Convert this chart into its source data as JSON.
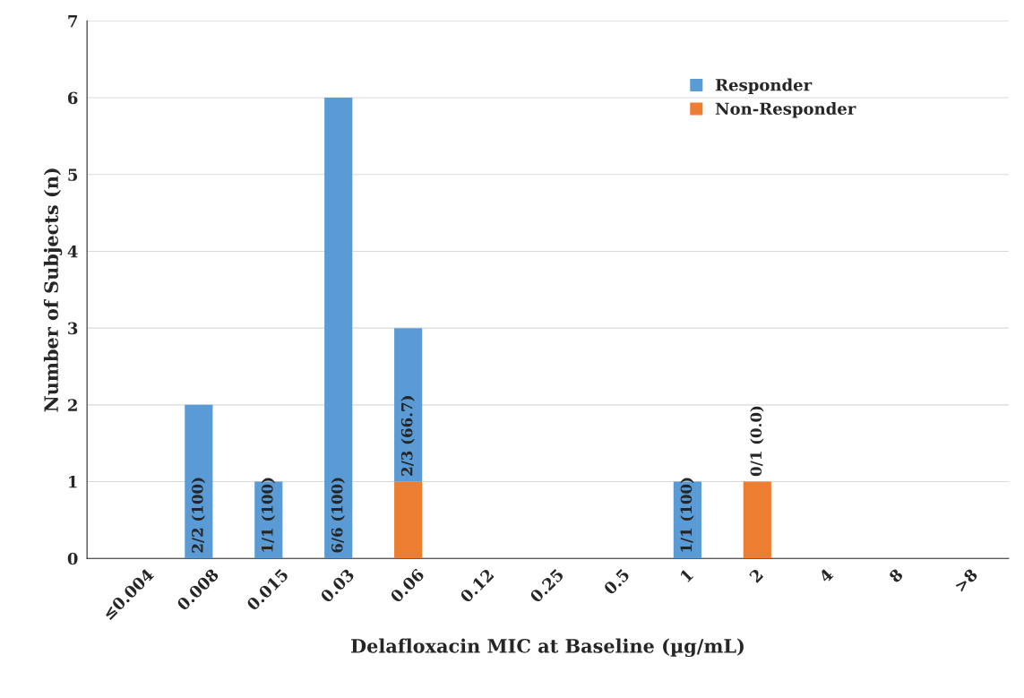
{
  "chart_data": {
    "type": "bar",
    "stacked": true,
    "xlabel": "Delafloxacin MIC at Baseline (µg/mL)",
    "ylabel": "Number of Subjects (n)",
    "categories": [
      "≤0.004",
      "0.008",
      "0.015",
      "0.03",
      "0.06",
      "0.12",
      "0.25",
      "0.5",
      "1",
      "2",
      "4",
      "8",
      ">8"
    ],
    "series": [
      {
        "name": "Non-Responder",
        "color": "#ed7d31",
        "values": [
          0,
          0,
          0,
          0,
          1,
          0,
          0,
          0,
          0,
          1,
          0,
          0,
          0
        ]
      },
      {
        "name": "Responder",
        "color": "#5b9bd5",
        "values": [
          0,
          2,
          1,
          6,
          2,
          0,
          0,
          0,
          1,
          0,
          0,
          0,
          0
        ]
      }
    ],
    "ylim": [
      0,
      7
    ],
    "yticks": [
      0,
      1,
      2,
      3,
      4,
      5,
      6,
      7
    ],
    "grid": "y",
    "legend": "top right",
    "annotations": [
      {
        "text": "2/2 (100)",
        "x": "0.008",
        "y": 0
      },
      {
        "text": "1/1 (100)",
        "x": "0.015",
        "y": 0
      },
      {
        "text": "6/6 (100)",
        "x": "0.03",
        "y": 0
      },
      {
        "text": "2/3 (66.7)",
        "x": "0.06",
        "y": 1
      },
      {
        "text": "1/1 (100)",
        "x": "1",
        "y": 0
      },
      {
        "text": "0/1 (0.0)",
        "x": "2",
        "y": 1
      }
    ]
  }
}
